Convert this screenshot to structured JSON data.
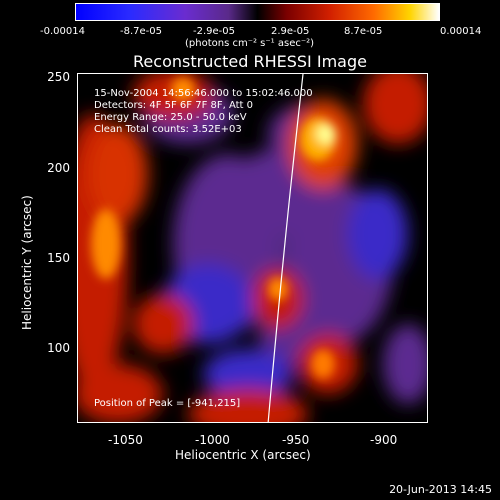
{
  "colorbar": {
    "ticks": [
      "-0.00014",
      "-8.7e-05",
      "-2.9e-05",
      "2.9e-05",
      "8.7e-05",
      "0.00014"
    ],
    "unit": "(photons cm⁻² s⁻¹ asec⁻²)"
  },
  "title": "Reconstructed RHESSI Image",
  "annotations": {
    "time_range": "15-Nov-2004 14:56:46.000 to 15:02:46.000",
    "detectors": "Detectors: 4F 5F 6F 7F 8F, Att 0",
    "energy": "Energy Range: 25.0 - 50.0 keV",
    "clean": "Clean    Total counts: 3.52E+03",
    "peak": "Position of Peak = [-941,215]"
  },
  "axes": {
    "xlabel": "Heliocentric X (arcsec)",
    "ylabel": "Heliocentric Y (arcsec)",
    "xticks": [
      "-1050",
      "-1000",
      "-950",
      "-900"
    ],
    "yticks": [
      "250",
      "200",
      "150",
      "100"
    ]
  },
  "footer": {
    "date": "20-Jun-2013 14:45"
  },
  "colors": {
    "limb_line": "#ffffff",
    "background": "#000000"
  }
}
